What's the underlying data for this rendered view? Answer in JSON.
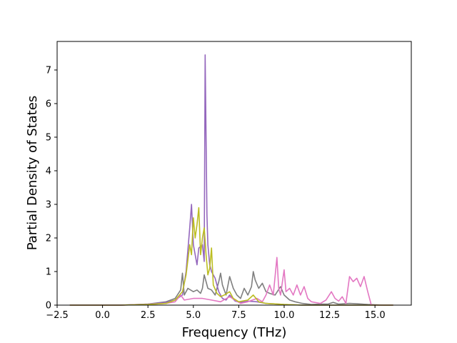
{
  "chart_data": {
    "type": "line",
    "title": "",
    "xlabel": "Frequency (THz)",
    "ylabel": "Partial Density of States",
    "xlim": [
      -2.5,
      17.0
    ],
    "ylim": [
      0,
      7.85
    ],
    "xticks": [
      -2.5,
      0.0,
      2.5,
      5.0,
      7.5,
      10.0,
      12.5,
      15.0
    ],
    "xtick_labels": [
      "−2.5",
      "0.0",
      "2.5",
      "5.0",
      "7.5",
      "10.0",
      "12.5",
      "15.0"
    ],
    "yticks": [
      0,
      1,
      2,
      3,
      4,
      5,
      6,
      7
    ],
    "ytick_labels": [
      "0",
      "1",
      "2",
      "3",
      "4",
      "5",
      "6",
      "7"
    ],
    "grid": false,
    "legend": "none",
    "series": [
      {
        "color": "#7f7f7f",
        "points": [
          [
            -1.8,
            0
          ],
          [
            1.0,
            0
          ],
          [
            2.5,
            0.03
          ],
          [
            3.5,
            0.1
          ],
          [
            4.0,
            0.2
          ],
          [
            4.3,
            0.45
          ],
          [
            4.4,
            0.95
          ],
          [
            4.5,
            0.3
          ],
          [
            4.7,
            0.5
          ],
          [
            5.0,
            0.4
          ],
          [
            5.2,
            0.45
          ],
          [
            5.4,
            0.35
          ],
          [
            5.5,
            0.5
          ],
          [
            5.6,
            0.9
          ],
          [
            5.7,
            0.7
          ],
          [
            5.8,
            0.5
          ],
          [
            6.0,
            0.45
          ],
          [
            6.2,
            0.3
          ],
          [
            6.4,
            0.7
          ],
          [
            6.5,
            0.95
          ],
          [
            6.6,
            0.6
          ],
          [
            6.8,
            0.3
          ],
          [
            7.0,
            0.85
          ],
          [
            7.2,
            0.5
          ],
          [
            7.4,
            0.3
          ],
          [
            7.6,
            0.2
          ],
          [
            7.8,
            0.5
          ],
          [
            8.0,
            0.3
          ],
          [
            8.2,
            0.55
          ],
          [
            8.3,
            1.0
          ],
          [
            8.4,
            0.75
          ],
          [
            8.6,
            0.5
          ],
          [
            8.8,
            0.65
          ],
          [
            9.0,
            0.4
          ],
          [
            9.2,
            0.35
          ],
          [
            9.5,
            0.3
          ],
          [
            9.8,
            0.55
          ],
          [
            10.0,
            0.3
          ],
          [
            10.3,
            0.15
          ],
          [
            10.6,
            0.1
          ],
          [
            11.0,
            0.05
          ],
          [
            11.5,
            0.02
          ],
          [
            12.0,
            0.03
          ],
          [
            12.4,
            0.03
          ],
          [
            12.7,
            0.08
          ],
          [
            13.0,
            0.03
          ],
          [
            13.6,
            0.05
          ],
          [
            14.0,
            0.04
          ],
          [
            14.6,
            0.02
          ],
          [
            15.5,
            0
          ],
          [
            16.0,
            0
          ]
        ]
      },
      {
        "color": "#9467bd",
        "points": [
          [
            -1.8,
            0
          ],
          [
            1.0,
            0
          ],
          [
            2.5,
            0.03
          ],
          [
            3.5,
            0.08
          ],
          [
            4.0,
            0.15
          ],
          [
            4.4,
            0.3
          ],
          [
            4.6,
            1.0
          ],
          [
            4.8,
            2.3
          ],
          [
            4.9,
            3.0
          ],
          [
            5.0,
            1.8
          ],
          [
            5.2,
            1.2
          ],
          [
            5.3,
            1.7
          ],
          [
            5.5,
            1.8
          ],
          [
            5.6,
            1.3
          ],
          [
            5.65,
            7.45
          ],
          [
            5.75,
            2.7
          ],
          [
            5.8,
            1.8
          ],
          [
            5.9,
            1.2
          ],
          [
            6.0,
            1.0
          ],
          [
            6.2,
            0.8
          ],
          [
            6.4,
            0.4
          ],
          [
            6.6,
            0.2
          ],
          [
            6.8,
            0.15
          ],
          [
            7.0,
            0.3
          ],
          [
            7.3,
            0.12
          ],
          [
            7.6,
            0.08
          ],
          [
            8.0,
            0.12
          ],
          [
            8.5,
            0.1
          ],
          [
            9.0,
            0.05
          ],
          [
            10.0,
            0.02
          ],
          [
            11.0,
            0
          ],
          [
            16.0,
            0
          ]
        ]
      },
      {
        "color": "#e377c2",
        "points": [
          [
            -1.8,
            0
          ],
          [
            1.0,
            0
          ],
          [
            2.5,
            0.02
          ],
          [
            3.5,
            0.05
          ],
          [
            4.0,
            0.1
          ],
          [
            4.3,
            0.3
          ],
          [
            4.5,
            0.15
          ],
          [
            5.0,
            0.2
          ],
          [
            5.5,
            0.2
          ],
          [
            6.0,
            0.15
          ],
          [
            6.5,
            0.1
          ],
          [
            7.0,
            0.25
          ],
          [
            7.3,
            0.15
          ],
          [
            7.6,
            0.05
          ],
          [
            8.0,
            0.1
          ],
          [
            8.5,
            0.2
          ],
          [
            8.8,
            0.1
          ],
          [
            9.0,
            0.3
          ],
          [
            9.2,
            0.6
          ],
          [
            9.4,
            0.3
          ],
          [
            9.6,
            1.42
          ],
          [
            9.7,
            0.5
          ],
          [
            9.8,
            0.3
          ],
          [
            10.0,
            1.05
          ],
          [
            10.1,
            0.4
          ],
          [
            10.3,
            0.5
          ],
          [
            10.5,
            0.3
          ],
          [
            10.7,
            0.6
          ],
          [
            10.9,
            0.3
          ],
          [
            11.1,
            0.55
          ],
          [
            11.3,
            0.2
          ],
          [
            11.5,
            0.1
          ],
          [
            12.0,
            0.05
          ],
          [
            12.3,
            0.15
          ],
          [
            12.6,
            0.4
          ],
          [
            12.8,
            0.2
          ],
          [
            13.0,
            0.12
          ],
          [
            13.2,
            0.25
          ],
          [
            13.4,
            0.05
          ],
          [
            13.6,
            0.85
          ],
          [
            13.8,
            0.7
          ],
          [
            14.0,
            0.8
          ],
          [
            14.2,
            0.55
          ],
          [
            14.4,
            0.85
          ],
          [
            14.6,
            0.4
          ],
          [
            14.8,
            0
          ],
          [
            16.0,
            0
          ]
        ]
      },
      {
        "color": "#bcbd22",
        "points": [
          [
            -1.8,
            0
          ],
          [
            1.0,
            0
          ],
          [
            2.5,
            0.02
          ],
          [
            3.5,
            0.05
          ],
          [
            4.0,
            0.15
          ],
          [
            4.4,
            0.4
          ],
          [
            4.6,
            0.9
          ],
          [
            4.8,
            1.8
          ],
          [
            4.9,
            1.5
          ],
          [
            5.0,
            2.6
          ],
          [
            5.1,
            2.0
          ],
          [
            5.2,
            2.4
          ],
          [
            5.3,
            2.9
          ],
          [
            5.4,
            1.5
          ],
          [
            5.5,
            2.0
          ],
          [
            5.6,
            2.3
          ],
          [
            5.7,
            1.5
          ],
          [
            5.8,
            0.9
          ],
          [
            5.9,
            1.1
          ],
          [
            6.0,
            1.7
          ],
          [
            6.1,
            0.6
          ],
          [
            6.3,
            0.35
          ],
          [
            6.5,
            0.25
          ],
          [
            6.7,
            0.3
          ],
          [
            7.0,
            0.4
          ],
          [
            7.2,
            0.2
          ],
          [
            7.5,
            0.1
          ],
          [
            8.0,
            0.15
          ],
          [
            8.3,
            0.3
          ],
          [
            8.6,
            0.1
          ],
          [
            9.0,
            0.05
          ],
          [
            10.0,
            0.02
          ],
          [
            11.0,
            0
          ],
          [
            16.0,
            0
          ]
        ]
      }
    ]
  }
}
